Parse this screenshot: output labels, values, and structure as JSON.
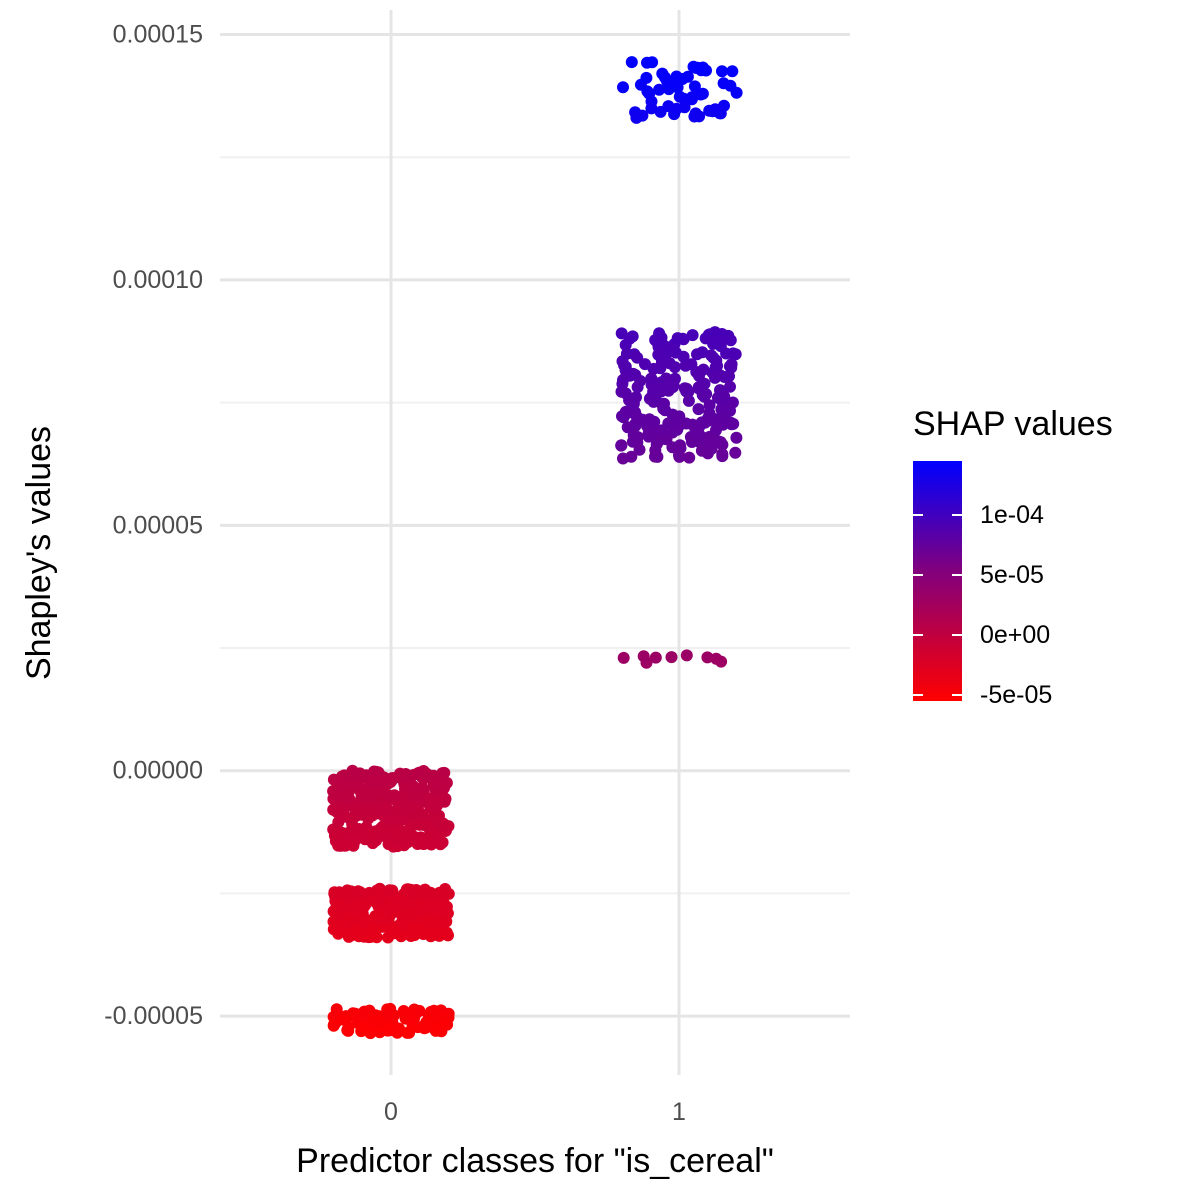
{
  "chart_data": {
    "type": "scatter",
    "subtype": "jitter",
    "xlabel": "Predictor classes for \"is_cereal\"",
    "ylabel": "Shapley's values",
    "categories": [
      "0",
      "1"
    ],
    "ylim": [
      -6.2e-05,
      0.000155
    ],
    "yticks": [
      -5e-05,
      0.0,
      5e-05,
      0.0001,
      0.00015
    ],
    "ytick_labels": [
      "-0.00005",
      "0.00000",
      "0.00005",
      "0.00010",
      "0.00015"
    ],
    "grid": true,
    "legend": {
      "title": "SHAP values",
      "position": "right",
      "gradient_low": "#ff0000",
      "gradient_high": "#0000ff",
      "range": [
        -5.5e-05,
        0.000145
      ],
      "ticks": [
        -5e-05,
        0.0,
        5e-05,
        0.0001
      ],
      "tick_labels": [
        "-5e-05",
        "0e+00",
        "5e-05",
        "1e-04"
      ]
    },
    "clusters": [
      {
        "category": "0",
        "y_min": -5.35e-05,
        "y_max": -4.85e-05,
        "count": 120
      },
      {
        "category": "0",
        "y_min": -3.4e-05,
        "y_max": -2.4e-05,
        "count": 260
      },
      {
        "category": "0",
        "y_min": -1.55e-05,
        "y_max": 0.0,
        "count": 320
      },
      {
        "category": "1",
        "y_min": 2.15e-05,
        "y_max": 2.35e-05,
        "count": 9
      },
      {
        "category": "1",
        "y_min": 6.35e-05,
        "y_max": 8.95e-05,
        "count": 230
      },
      {
        "category": "1",
        "y_min": 0.000133,
        "y_max": 0.0001445,
        "count": 55
      }
    ]
  }
}
